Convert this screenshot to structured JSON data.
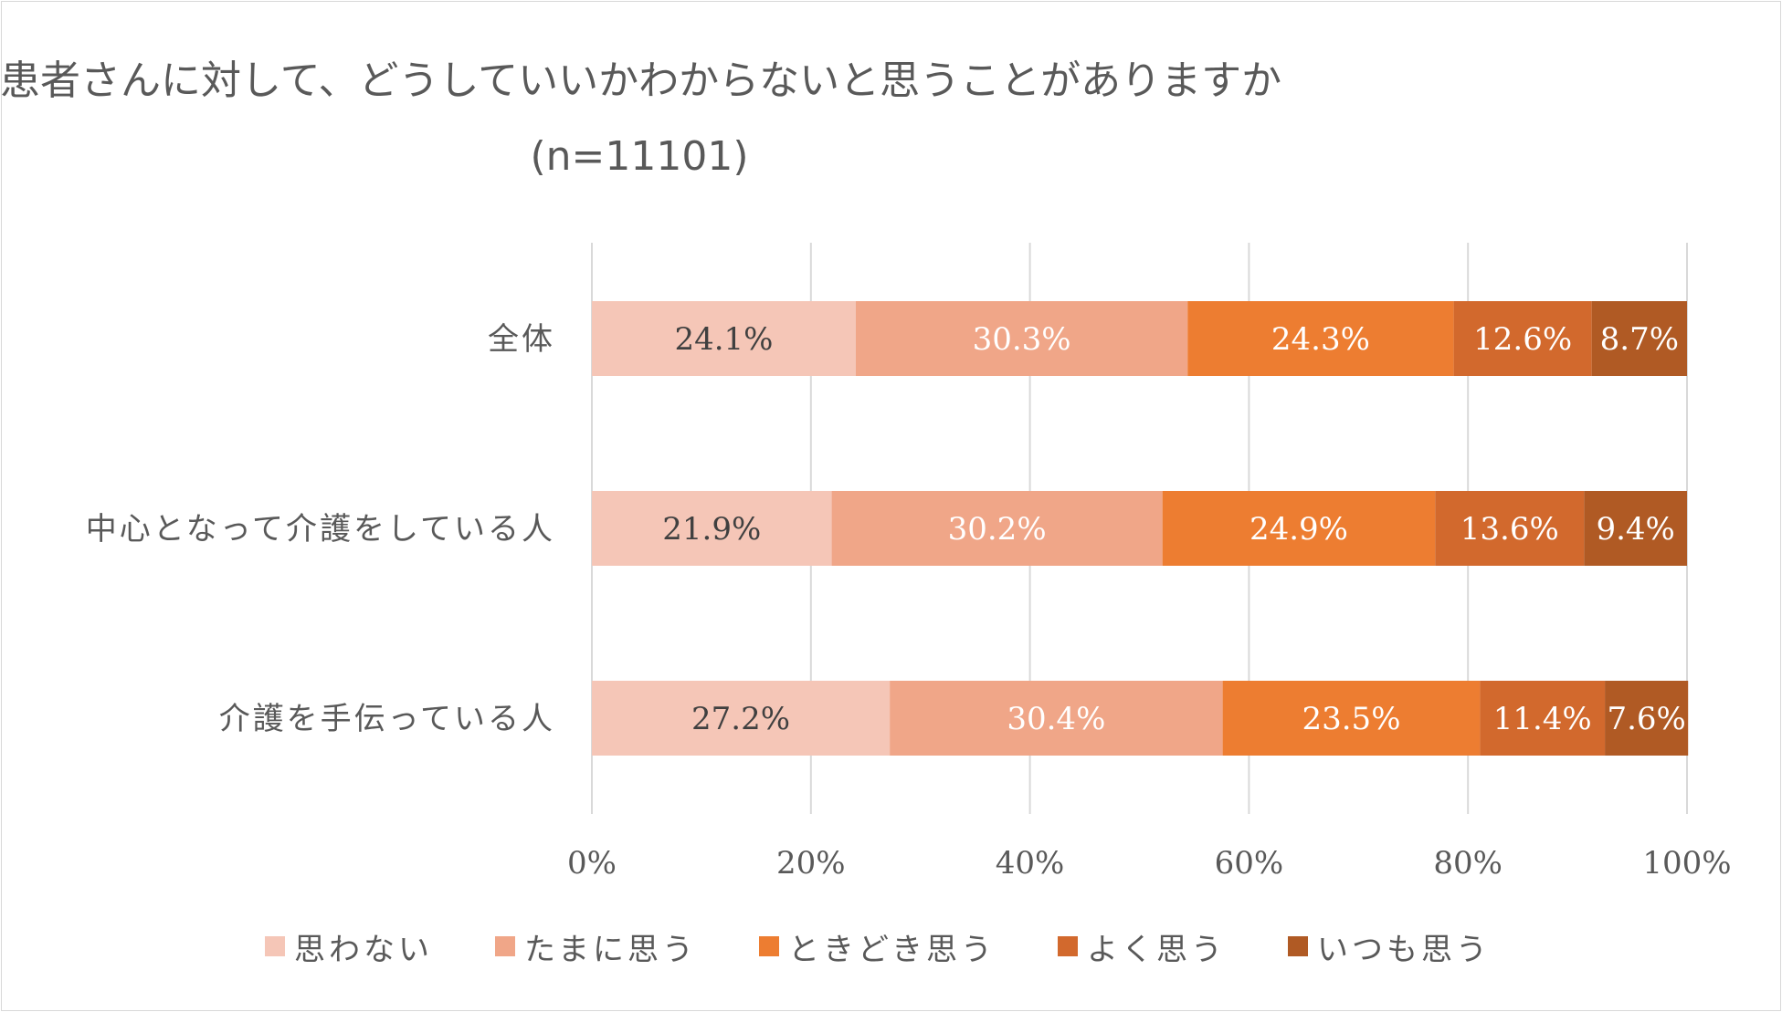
{
  "chart_data": {
    "type": "bar",
    "orientation": "horizontal",
    "stacked": "percent",
    "title": "患者さんに対して、どうしていいかわからないと思うことがありますか",
    "subtitle": "(n=11101)",
    "categories": [
      "全体",
      "中心となって介護をしている人",
      "介護を手伝っている人"
    ],
    "series": [
      {
        "name": "思わない",
        "color": "#f5c6b7",
        "values": [
          24.1,
          21.9,
          27.2
        ],
        "labels": [
          "24.1%",
          "21.9%",
          "27.2%"
        ],
        "label_color": "#404040"
      },
      {
        "name": "たまに思う",
        "color": "#f0a688",
        "values": [
          30.3,
          30.2,
          30.4
        ],
        "labels": [
          "30.3%",
          "30.2%",
          "30.4%"
        ],
        "label_color": "#ffffff"
      },
      {
        "name": "ときどき思う",
        "color": "#ed7d31",
        "values": [
          24.3,
          24.9,
          23.5
        ],
        "labels": [
          "24.3%",
          "24.9%",
          "23.5%"
        ],
        "label_color": "#ffffff"
      },
      {
        "name": "よく思う",
        "color": "#d2692d",
        "values": [
          12.6,
          13.6,
          11.4
        ],
        "labels": [
          "12.6%",
          "13.6%",
          "11.4%"
        ],
        "label_color": "#ffffff"
      },
      {
        "name": "いつも思う",
        "color": "#b05a24",
        "values": [
          8.7,
          9.4,
          7.6
        ],
        "labels": [
          "8.7%",
          "9.4%",
          "7.6%"
        ],
        "label_color": "#ffffff"
      }
    ],
    "xlim": [
      0,
      100
    ],
    "x_ticks": [
      "0%",
      "20%",
      "40%",
      "60%",
      "80%",
      "100%"
    ],
    "xlabel": "",
    "ylabel": "",
    "grid": "vertical",
    "legend_position": "bottom"
  }
}
